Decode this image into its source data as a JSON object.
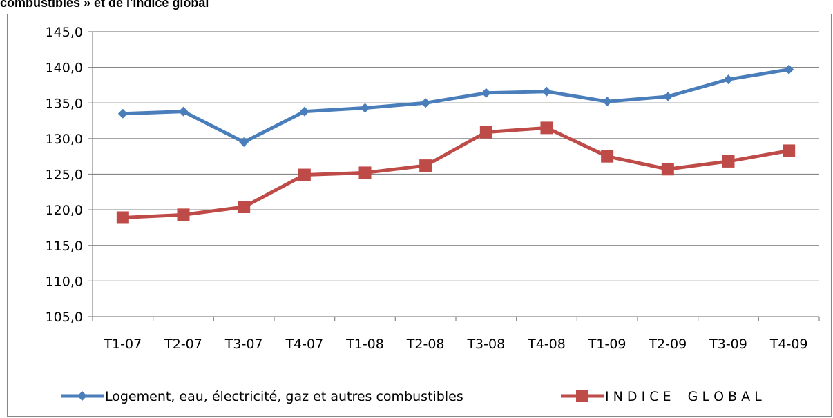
{
  "header": {
    "cut_title": "combustibles » et de l'indice global"
  },
  "chart_data": {
    "type": "line",
    "categories": [
      "T1-07",
      "T2-07",
      "T3-07",
      "T4-07",
      "T1-08",
      "T2-08",
      "T3-08",
      "T4-08",
      "T1-09",
      "T2-09",
      "T3-09",
      "T4-09"
    ],
    "y_tick_labels": [
      "105,0",
      "110,0",
      "115,0",
      "120,0",
      "125,0",
      "130,0",
      "135,0",
      "140,0",
      "145,0"
    ],
    "ylim": [
      105,
      145
    ],
    "grid": true,
    "legend_position": "bottom",
    "series": [
      {
        "name": "Logement, eau, électricité, gaz et autres combustibles",
        "color": "#4A7EBB",
        "marker": "diamond",
        "values": [
          133.5,
          133.8,
          129.5,
          133.8,
          134.3,
          135.0,
          136.4,
          136.6,
          135.2,
          135.9,
          138.3,
          139.7
        ]
      },
      {
        "name": "I N D I C E    G L O B A L",
        "color": "#BE4B48",
        "marker": "square",
        "values": [
          118.9,
          119.3,
          120.4,
          124.9,
          125.2,
          126.2,
          130.9,
          131.5,
          127.5,
          125.7,
          126.8,
          128.3
        ]
      }
    ]
  }
}
